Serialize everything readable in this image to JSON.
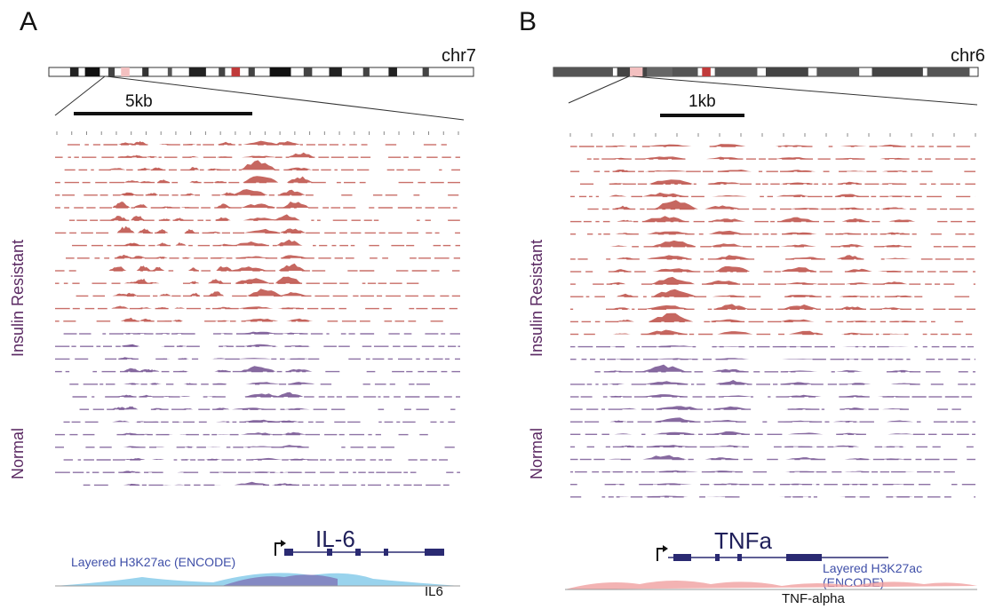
{
  "panels": [
    {
      "letter": "A",
      "chromosome": "chr7",
      "scale": "5kb",
      "ir_label": "Insulin Resistant",
      "normal_label": "Normal",
      "gene_big": "IL-6",
      "encode": "Layered H3K27ac (ENCODE)",
      "gene_small": "IL6"
    },
    {
      "letter": "B",
      "chromosome": "chr6",
      "scale": "1kb",
      "ir_label": "Insulin Resistant",
      "normal_label": "Normal",
      "gene_big": "TNFa",
      "encode": "Layered H3K27ac (ENCODE)",
      "gene_small": "TNF-alpha"
    }
  ],
  "colors": {
    "insulin_resistant": "#c0574f",
    "normal": "#7a5a96",
    "gene": "#2a2a72",
    "encode_a": "#7fc8e8",
    "encode_b": "#f0a0a0",
    "label_purple": "#5b2a63"
  }
}
